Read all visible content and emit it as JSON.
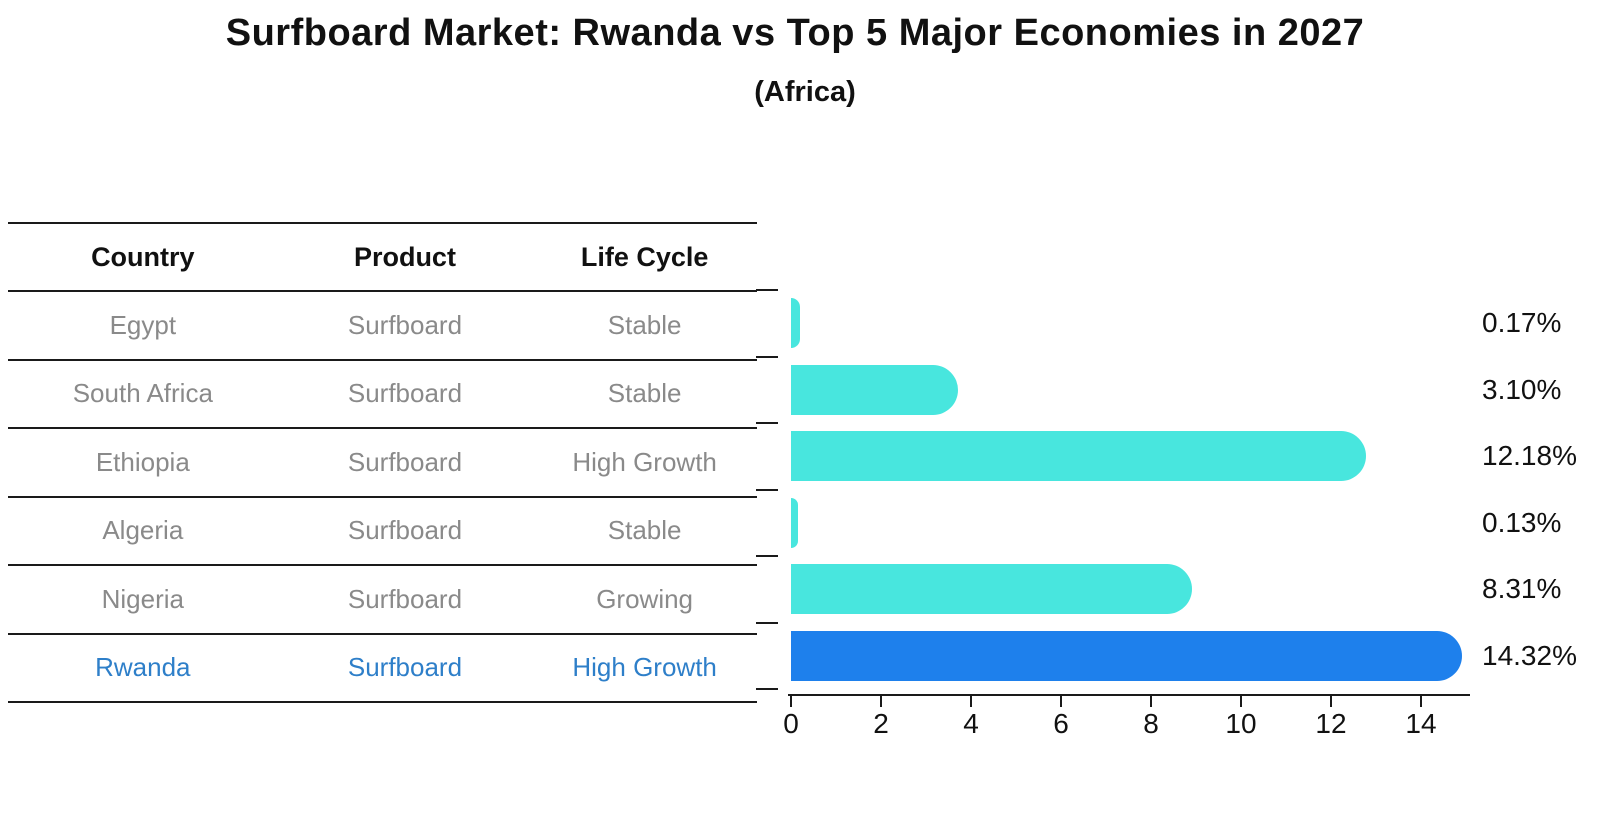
{
  "title": "Surfboard Market: Rwanda vs Top 5 Major Economies in 2027",
  "subtitle": "(Africa)",
  "table": {
    "headers": [
      "Country",
      "Product",
      "Life Cycle"
    ],
    "rows": [
      {
        "country": "Egypt",
        "product": "Surfboard",
        "life_cycle": "Stable",
        "highlight": false
      },
      {
        "country": "South Africa",
        "product": "Surfboard",
        "life_cycle": "Stable",
        "highlight": false
      },
      {
        "country": "Ethiopia",
        "product": "Surfboard",
        "life_cycle": "High Growth",
        "highlight": false
      },
      {
        "country": "Algeria",
        "product": "Surfboard",
        "life_cycle": "Stable",
        "highlight": false
      },
      {
        "country": "Nigeria",
        "product": "Surfboard",
        "life_cycle": "Growing",
        "highlight": false
      },
      {
        "country": "Rwanda",
        "product": "Surfboard",
        "life_cycle": "High Growth",
        "highlight": true
      }
    ]
  },
  "chart_data": {
    "type": "bar",
    "orientation": "horizontal",
    "categories": [
      "Egypt",
      "South Africa",
      "Ethiopia",
      "Algeria",
      "Nigeria",
      "Rwanda"
    ],
    "values": [
      0.17,
      3.1,
      12.18,
      0.13,
      8.31,
      14.32
    ],
    "value_labels": [
      "0.17%",
      "3.10%",
      "12.18%",
      "0.13%",
      "8.31%",
      "14.32%"
    ],
    "x_ticks": [
      "0",
      "2",
      "4",
      "6",
      "8",
      "10",
      "12",
      "14"
    ],
    "xlim": [
      0,
      15
    ],
    "grid": false,
    "legend": "none",
    "highlight_index": 5,
    "colors": {
      "bar": "#48E6DE",
      "highlight_bar": "#1E80EC",
      "highlight_text": "#2E7FC9",
      "table_text": "#8a8a8a",
      "axis": "#1a1a1a"
    }
  }
}
